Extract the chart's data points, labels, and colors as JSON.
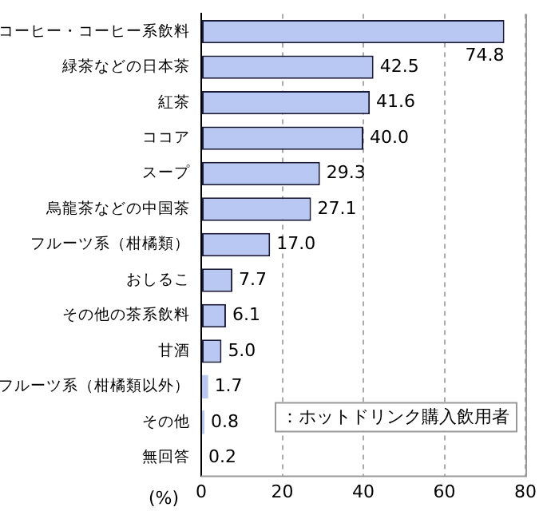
{
  "chart_data": {
    "type": "bar",
    "orientation": "horizontal",
    "categories": [
      "コーヒー・コーヒー系飲料",
      "緑茶などの日本茶",
      "紅茶",
      "ココア",
      "スープ",
      "烏龍茶などの中国茶",
      "フルーツ系（柑橘類）",
      "おしるこ",
      "その他の茶系飲料",
      "甘酒",
      "フルーツ系（柑橘類以外）",
      "その他",
      "無回答"
    ],
    "values": [
      74.8,
      42.5,
      41.6,
      40.0,
      29.3,
      27.1,
      17.0,
      7.7,
      6.1,
      5.0,
      1.7,
      0.8,
      0.2
    ],
    "color": "#b8c8f2",
    "xlim": [
      0,
      80
    ],
    "xticks": [
      0,
      20,
      40,
      60,
      80
    ],
    "xlabel": "(%)",
    "annotations": [
      "：ホットドリンク購入飲用者"
    ],
    "value_labels": [
      "74.8",
      "42.5",
      "41.6",
      "40.0",
      "29.3",
      "27.1",
      "17.0",
      "7.7",
      "6.1",
      "5.0",
      "1.7",
      "0.8",
      "0.2"
    ],
    "grid": "x",
    "legend": false
  }
}
